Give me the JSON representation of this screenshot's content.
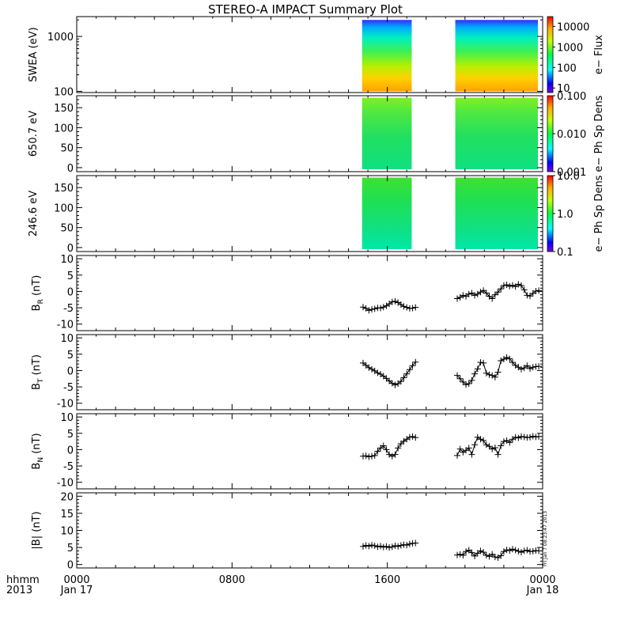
{
  "chart_data": {
    "type": "summary-plot",
    "title": "STEREO-A IMPACT Summary Plot",
    "x_axis": {
      "label_lines": [
        "hhmm",
        "2013"
      ],
      "ticks": [
        {
          "top": "0000",
          "bottom": "Jan 17",
          "hour": 0
        },
        {
          "top": "0800",
          "bottom": "",
          "hour": 8
        },
        {
          "top": "1600",
          "bottom": "",
          "hour": 16
        },
        {
          "top": "0000",
          "bottom": "Jan 18",
          "hour": 24
        }
      ],
      "range_hours": [
        0,
        24
      ]
    },
    "timestamp": "Fri Jan  7 08:23:47 2013",
    "data_windows_hours": [
      [
        14.7,
        17.5
      ],
      [
        19.5,
        24.0
      ]
    ],
    "spectrograms": [
      {
        "ylabel": "SWEA (eV)",
        "yscale": "log",
        "ylim": [
          95,
          2300
        ],
        "yticks": [
          "100",
          "1000"
        ],
        "ytick_values": [
          100,
          1000
        ],
        "colorbar_label": "e− Flux",
        "colorbar_ticks": [
          "10",
          "100",
          "1000",
          "10000"
        ],
        "colorbar_tick_values": [
          10,
          100,
          1000,
          10000
        ],
        "colorbar_range": [
          6,
          30000
        ]
      },
      {
        "ylabel": "650.7 eV",
        "yscale": "linear",
        "ylim": [
          -10,
          180
        ],
        "yticks": [
          "0",
          "50",
          "100",
          "150"
        ],
        "ytick_values": [
          0,
          50,
          100,
          150
        ],
        "colorbar_label": "e− Ph Sp Dens",
        "colorbar_ticks": [
          "0.001",
          "0.010",
          "0.100"
        ],
        "colorbar_tick_values": [
          0.001,
          0.01,
          0.1
        ],
        "colorbar_range": [
          0.001,
          0.1
        ]
      },
      {
        "ylabel": "246.6 eV",
        "yscale": "linear",
        "ylim": [
          -10,
          180
        ],
        "yticks": [
          "0",
          "50",
          "100",
          "150"
        ],
        "ytick_values": [
          0,
          50,
          100,
          150
        ],
        "colorbar_label": "e− Ph Sp Dens",
        "colorbar_ticks": [
          "0.1",
          "1.0",
          "10.0"
        ],
        "colorbar_tick_values": [
          0.1,
          1,
          10
        ],
        "colorbar_range": [
          0.1,
          10
        ]
      }
    ],
    "line_panels": [
      {
        "ylabel": "B",
        "ylabel_sub": "R",
        "ylabel_unit": "(nT)",
        "ylim": [
          -12,
          11
        ],
        "yticks": [
          "-10",
          "-5",
          "0",
          "5",
          "10"
        ],
        "ytick_values": [
          -10,
          -5,
          0,
          5,
          10
        ],
        "series": [
          {
            "x": [
              14.75,
              14.9,
              15.05,
              15.2,
              15.35,
              15.5,
              15.65,
              15.8,
              15.95,
              16.1,
              16.25,
              16.4,
              16.55,
              16.7,
              16.85,
              17.0,
              17.15,
              17.3,
              17.45
            ],
            "y": [
              -4.8,
              -5.2,
              -5.8,
              -5.5,
              -5.3,
              -5.0,
              -5.1,
              -4.8,
              -4.4,
              -3.8,
              -3.2,
              -3.0,
              -3.4,
              -4.0,
              -4.6,
              -4.9,
              -5.2,
              -5.1,
              -4.9
            ]
          },
          {
            "x": [
              19.6,
              19.75,
              19.9,
              20.05,
              20.2,
              20.35,
              20.5,
              20.65,
              20.8,
              20.95,
              21.1,
              21.25,
              21.4,
              21.55,
              21.7,
              21.85,
              22.0,
              22.15,
              22.3,
              22.45,
              22.6,
              22.75,
              22.9,
              23.05,
              23.2,
              23.35,
              23.5,
              23.65,
              23.8
            ],
            "y": [
              -2.2,
              -1.8,
              -1.2,
              -1.5,
              -0.8,
              -0.5,
              -1.2,
              -0.8,
              -0.2,
              0.3,
              -0.5,
              -1.5,
              -2.2,
              -1.0,
              -0.2,
              0.8,
              1.8,
              2.0,
              1.6,
              1.9,
              1.5,
              2.2,
              1.8,
              0.5,
              -1.2,
              -1.4,
              -0.6,
              0.1,
              0.3
            ]
          }
        ]
      },
      {
        "ylabel": "B",
        "ylabel_sub": "T",
        "ylabel_unit": "(nT)",
        "ylim": [
          -12,
          11
        ],
        "yticks": [
          "-10",
          "-5",
          "0",
          "5",
          "10"
        ],
        "ytick_values": [
          -10,
          -5,
          0,
          5,
          10
        ],
        "series": [
          {
            "x": [
              14.75,
              14.9,
              15.05,
              15.2,
              15.35,
              15.5,
              15.65,
              15.8,
              15.95,
              16.1,
              16.25,
              16.4,
              16.55,
              16.7,
              16.85,
              17.0,
              17.15,
              17.3,
              17.45
            ],
            "y": [
              2.3,
              1.6,
              0.9,
              0.4,
              -0.1,
              -0.7,
              -1.1,
              -1.7,
              -2.4,
              -3.2,
              -3.9,
              -4.4,
              -4.0,
              -3.3,
              -2.2,
              -1.0,
              0.3,
              1.5,
              2.6
            ]
          },
          {
            "x": [
              19.6,
              19.75,
              19.9,
              20.05,
              20.2,
              20.35,
              20.5,
              20.65,
              20.8,
              20.95,
              21.1,
              21.25,
              21.4,
              21.55,
              21.7,
              21.85,
              22.0,
              22.15,
              22.3,
              22.45,
              22.6,
              22.75,
              22.9,
              23.05,
              23.2,
              23.35,
              23.5,
              23.65,
              23.8
            ],
            "y": [
              -1.5,
              -2.5,
              -3.5,
              -4.3,
              -4.0,
              -3.0,
              -1.0,
              0.5,
              2.5,
              2.3,
              -0.8,
              -1.3,
              -1.5,
              -2.0,
              -0.5,
              3.0,
              3.5,
              4.0,
              3.6,
              2.5,
              1.6,
              1.0,
              0.4,
              0.8,
              1.5,
              0.6,
              1.0,
              1.2,
              1.3
            ]
          }
        ]
      },
      {
        "ylabel": "B",
        "ylabel_sub": "N",
        "ylabel_unit": "(nT)",
        "ylim": [
          -12,
          11
        ],
        "yticks": [
          "-10",
          "-5",
          "0",
          "5",
          "10"
        ],
        "ytick_values": [
          -10,
          -5,
          0,
          5,
          10
        ],
        "series": [
          {
            "x": [
              14.75,
              14.9,
              15.05,
              15.2,
              15.35,
              15.5,
              15.65,
              15.8,
              15.95,
              16.1,
              16.25,
              16.4,
              16.55,
              16.7,
              16.85,
              17.0,
              17.15,
              17.3,
              17.45
            ],
            "y": [
              -2.0,
              -1.9,
              -2.2,
              -2.0,
              -1.8,
              -0.5,
              0.5,
              1.2,
              0.0,
              -1.5,
              -2.0,
              -1.5,
              0.5,
              1.8,
              2.6,
              3.2,
              3.8,
              4.0,
              3.7
            ]
          },
          {
            "x": [
              19.6,
              19.75,
              19.9,
              20.05,
              20.2,
              20.35,
              20.5,
              20.65,
              20.8,
              20.95,
              21.1,
              21.25,
              21.4,
              21.55,
              21.7,
              21.85,
              22.0,
              22.15,
              22.3,
              22.45,
              22.6,
              22.75,
              22.9,
              23.05,
              23.2,
              23.35,
              23.5,
              23.65,
              23.8
            ],
            "y": [
              -1.8,
              0.2,
              -0.8,
              -0.2,
              0.5,
              -1.5,
              1.5,
              3.8,
              3.2,
              2.8,
              1.5,
              1.0,
              0.2,
              0.6,
              -1.5,
              1.2,
              2.5,
              2.8,
              2.2,
              3.2,
              3.8,
              3.6,
              4.0,
              3.9,
              3.7,
              3.8,
              4.1,
              3.9,
              4.0
            ]
          }
        ]
      },
      {
        "ylabel": "|B|",
        "ylabel_sub": "",
        "ylabel_unit": "(nT)",
        "ylim": [
          -1,
          21
        ],
        "yticks": [
          "0",
          "5",
          "10",
          "15",
          "20"
        ],
        "ytick_values": [
          0,
          5,
          10,
          15,
          20
        ],
        "series": [
          {
            "x": [
              14.75,
              14.9,
              15.05,
              15.2,
              15.35,
              15.5,
              15.65,
              15.8,
              15.95,
              16.1,
              16.25,
              16.4,
              16.55,
              16.7,
              16.85,
              17.0,
              17.15,
              17.3,
              17.45
            ],
            "y": [
              5.3,
              5.6,
              5.4,
              5.7,
              5.5,
              5.2,
              5.4,
              5.1,
              5.3,
              5.0,
              5.2,
              5.5,
              5.3,
              5.6,
              5.8,
              5.7,
              6.0,
              6.2,
              6.3
            ]
          },
          {
            "x": [
              19.6,
              19.75,
              19.9,
              20.05,
              20.2,
              20.35,
              20.5,
              20.65,
              20.8,
              20.95,
              21.1,
              21.25,
              21.4,
              21.55,
              21.7,
              21.85,
              22.0,
              22.15,
              22.3,
              22.45,
              22.6,
              22.75,
              22.9,
              23.05,
              23.2,
              23.35,
              23.5,
              23.65,
              23.8
            ],
            "y": [
              2.8,
              3.0,
              2.7,
              3.8,
              4.2,
              3.5,
              2.5,
              3.3,
              4.0,
              3.6,
              2.7,
              2.4,
              3.0,
              2.2,
              2.0,
              2.6,
              3.8,
              4.3,
              4.1,
              4.5,
              4.2,
              3.9,
              3.6,
              4.0,
              4.2,
              3.8,
              3.9,
              4.1,
              4.0
            ]
          }
        ]
      }
    ]
  }
}
